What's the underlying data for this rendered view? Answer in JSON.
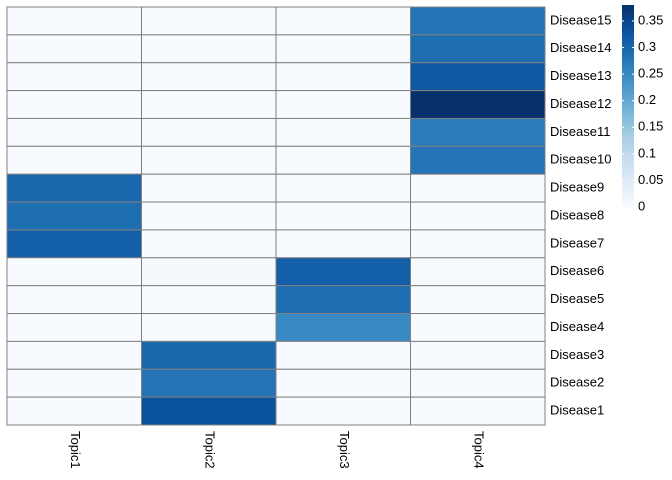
{
  "chart_data": {
    "type": "heatmap",
    "title": "",
    "xlabel": "",
    "ylabel": "",
    "columns": [
      "Topic1",
      "Topic2",
      "Topic3",
      "Topic4"
    ],
    "rows_top_to_bottom": [
      "Disease15",
      "Disease14",
      "Disease13",
      "Disease12",
      "Disease11",
      "Disease10",
      "Disease9",
      "Disease8",
      "Disease7",
      "Disease6",
      "Disease5",
      "Disease4",
      "Disease3",
      "Disease2",
      "Disease1"
    ],
    "values": [
      [
        0.0,
        0.0,
        0.0,
        0.28
      ],
      [
        0.0,
        0.0,
        0.0,
        0.29
      ],
      [
        0.0,
        0.003,
        0.0,
        0.32
      ],
      [
        0.0,
        0.0,
        0.0,
        0.38
      ],
      [
        0.0,
        0.0,
        0.0,
        0.27
      ],
      [
        0.0,
        0.0,
        0.0,
        0.28
      ],
      [
        0.3,
        0.0,
        0.0,
        0.0
      ],
      [
        0.29,
        0.0,
        0.0,
        0.0
      ],
      [
        0.31,
        0.0,
        0.0,
        0.0
      ],
      [
        0.0,
        0.005,
        0.31,
        0.0
      ],
      [
        0.0,
        0.0,
        0.29,
        0.0
      ],
      [
        0.0,
        0.0,
        0.25,
        0.0
      ],
      [
        0.0,
        0.3,
        0.0,
        0.0
      ],
      [
        0.0,
        0.28,
        0.0,
        0.0
      ],
      [
        0.0,
        0.33,
        0.0,
        0.0
      ]
    ],
    "color_scale": {
      "min": 0,
      "max": 0.38,
      "stops": [
        "#f7fbff",
        "#deebf7",
        "#c6dbef",
        "#9ecae1",
        "#6baed6",
        "#4292c6",
        "#2171b5",
        "#08519c",
        "#08306b"
      ]
    },
    "legend": {
      "position": "right",
      "ticks": [
        0.35,
        0.3,
        0.25,
        0.2,
        0.15,
        0.1,
        0.05,
        0
      ],
      "tick_labels": [
        "0.35",
        "0.3",
        "0.25",
        "0.2",
        "0.15",
        "0.1",
        "0.05",
        "0"
      ]
    },
    "cell_border_color": "#808080"
  }
}
